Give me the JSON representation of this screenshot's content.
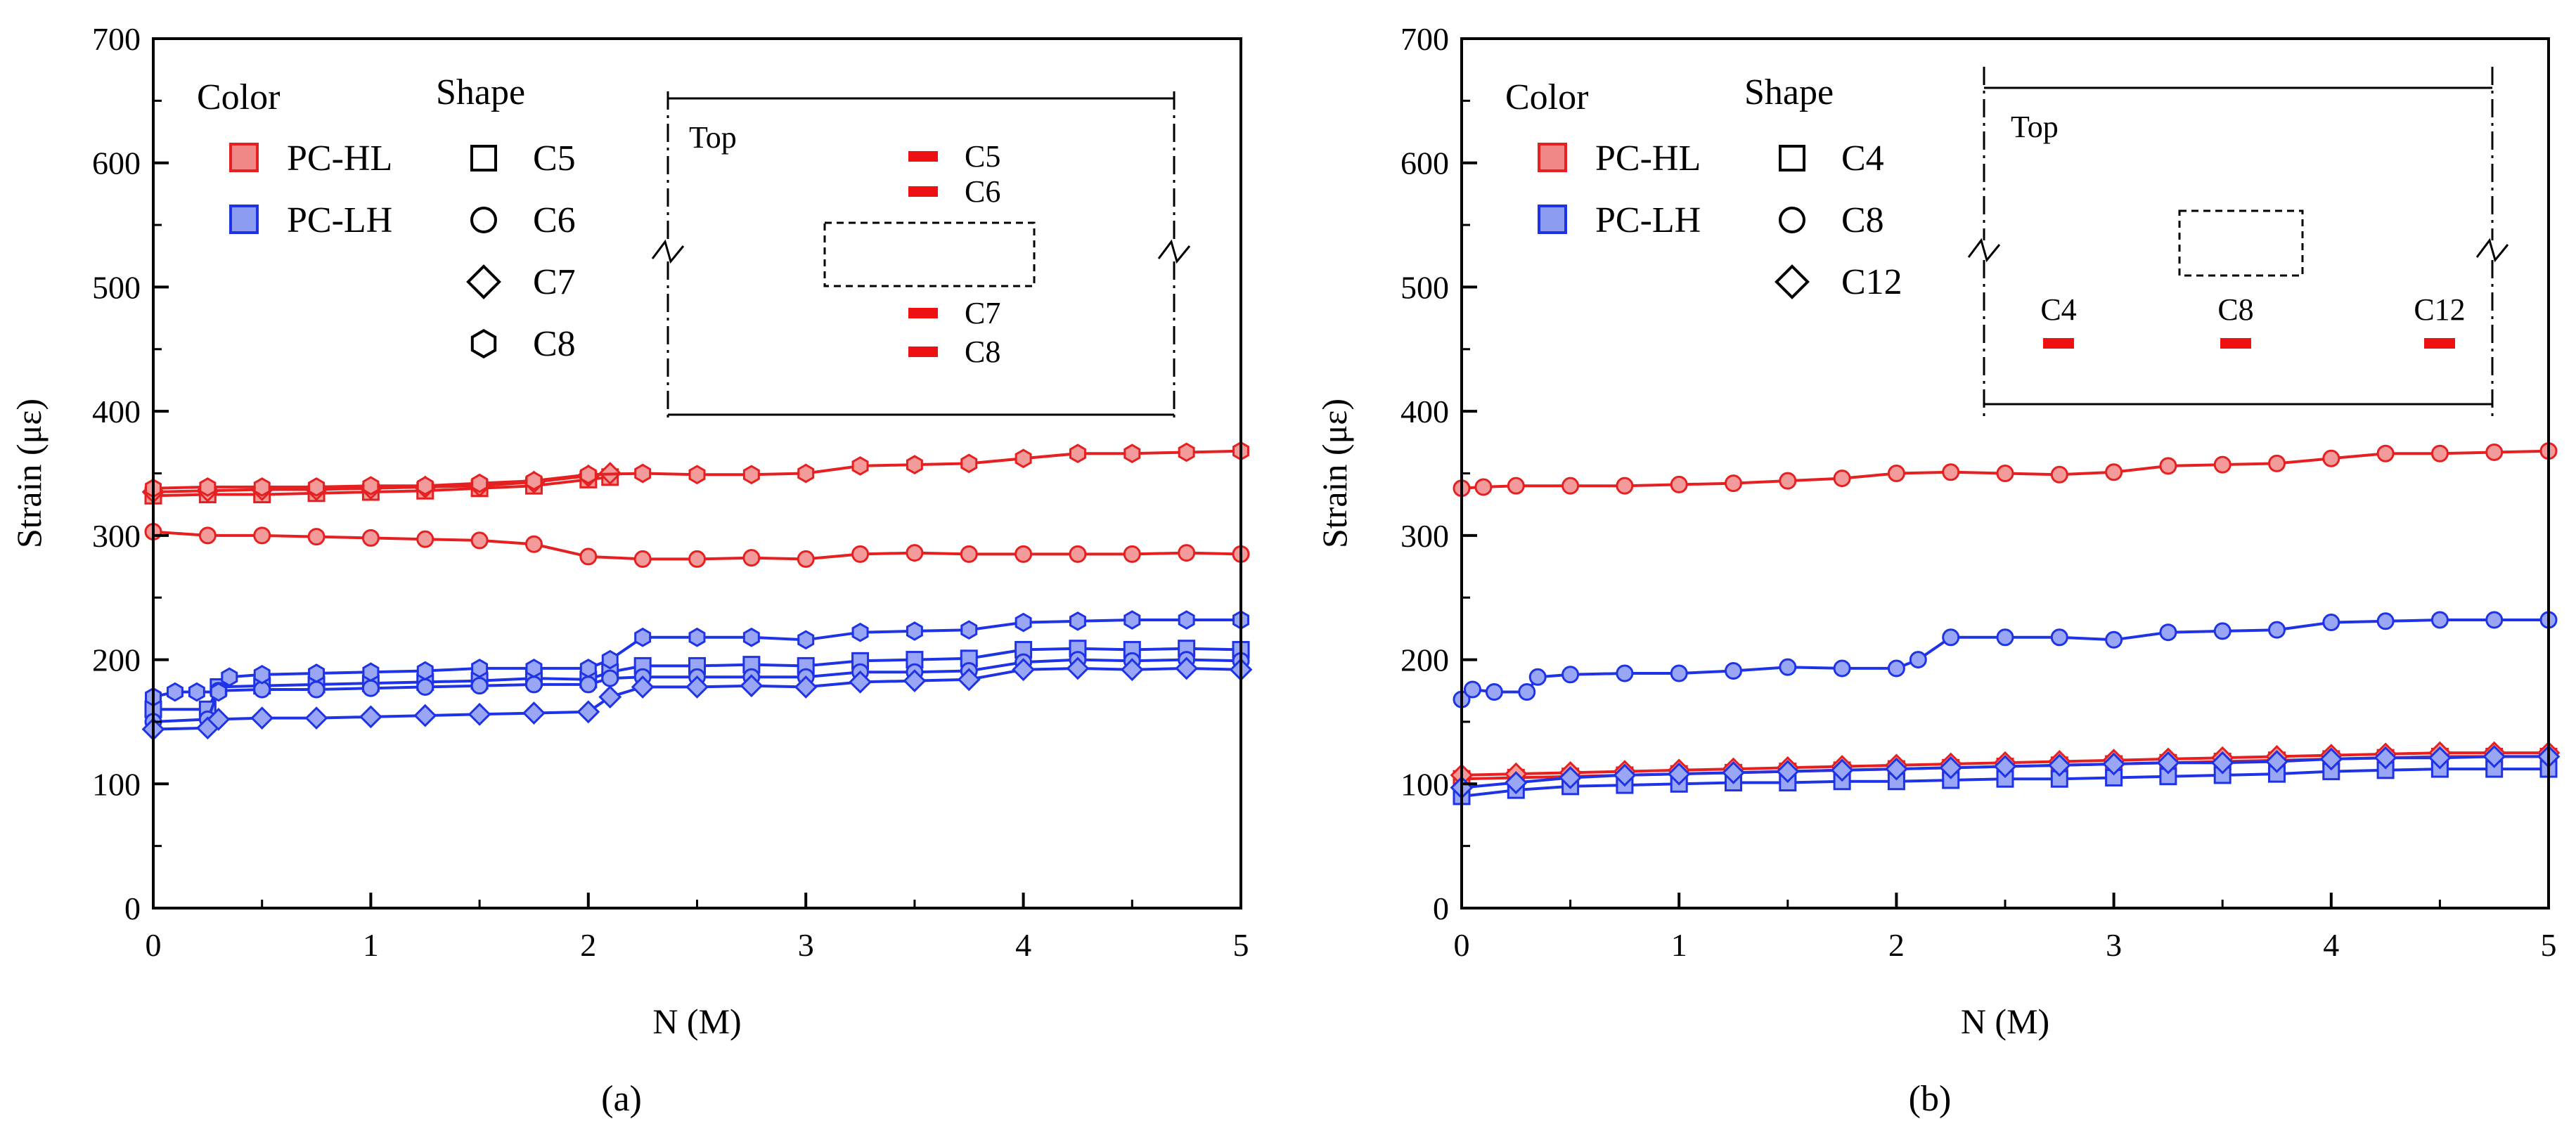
{
  "chart_data": [
    {
      "type": "line",
      "panel_label": "(a)",
      "xlabel": "N (M)",
      "ylabel": "Strain (με)",
      "xlim": [
        0,
        5
      ],
      "ylim": [
        0,
        700
      ],
      "xticks": [
        "0",
        "1",
        "2",
        "3",
        "4",
        "5"
      ],
      "yticks": [
        "0",
        "100",
        "200",
        "300",
        "400",
        "500",
        "600",
        "700"
      ],
      "legend": {
        "color_title": "Color",
        "shape_title": "Shape",
        "color_entries": [
          {
            "label": "PC-HL",
            "color": "#f08888"
          },
          {
            "label": "PC-LH",
            "color": "#8c9cf0"
          }
        ],
        "shape_entries": [
          {
            "label": "C5",
            "shape": "square"
          },
          {
            "label": "C6",
            "shape": "circle"
          },
          {
            "label": "C7",
            "shape": "diamond"
          },
          {
            "label": "C8",
            "shape": "hexagon"
          }
        ]
      },
      "inset": {
        "top_label": "Top",
        "gauges": [
          "C5",
          "C6",
          "C7",
          "C8"
        ]
      },
      "series": [
        {
          "group": "PC-HL",
          "gauge": "C5",
          "marker": "square",
          "color": "#e62020",
          "fill": "#f39a9a",
          "x": [
            0,
            0.25,
            0.5,
            0.75,
            1,
            1.25,
            1.5,
            1.75,
            2.0,
            2.1
          ],
          "y": [
            332,
            333,
            333,
            334,
            335,
            336,
            338,
            340,
            345,
            347
          ]
        },
        {
          "group": "PC-HL",
          "gauge": "C6",
          "marker": "circle",
          "color": "#e62020",
          "fill": "#f39a9a",
          "x": [
            0,
            0.25,
            0.5,
            0.75,
            1,
            1.25,
            1.5,
            1.75,
            2.0,
            2.25,
            2.5,
            2.75,
            3.0,
            3.25,
            3.5,
            3.75,
            4.0,
            4.25,
            4.5,
            4.75,
            5.0
          ],
          "y": [
            303,
            300,
            300,
            299,
            298,
            297,
            296,
            293,
            283,
            281,
            281,
            282,
            281,
            285,
            286,
            285,
            285,
            285,
            285,
            286,
            285
          ]
        },
        {
          "group": "PC-HL",
          "gauge": "C7",
          "marker": "diamond",
          "color": "#e62020",
          "fill": "#f39a9a",
          "x": [
            0,
            0.25,
            0.5,
            0.75,
            1,
            1.25,
            1.5,
            1.75,
            2.0,
            2.1
          ],
          "y": [
            335,
            336,
            337,
            337,
            338,
            339,
            340,
            343,
            348,
            350
          ]
        },
        {
          "group": "PC-HL",
          "gauge": "C8",
          "marker": "hexagon",
          "color": "#e62020",
          "fill": "#f39a9a",
          "x": [
            0,
            0.25,
            0.5,
            0.75,
            1,
            1.25,
            1.5,
            1.75,
            2.0,
            2.25,
            2.5,
            2.75,
            3.0,
            3.25,
            3.5,
            3.75,
            4.0,
            4.25,
            4.5,
            4.75,
            5.0
          ],
          "y": [
            338,
            339,
            339,
            339,
            340,
            340,
            342,
            344,
            349,
            350,
            349,
            349,
            350,
            356,
            357,
            358,
            362,
            366,
            366,
            367,
            368
          ]
        },
        {
          "group": "PC-LH",
          "gauge": "C5",
          "marker": "square",
          "color": "#1f33e6",
          "fill": "#98a6f5",
          "x": [
            0,
            0.25,
            0.3,
            0.5,
            0.75,
            1,
            1.25,
            1.5,
            1.75,
            2.0,
            2.1,
            2.25,
            2.5,
            2.75,
            3.0,
            3.25,
            3.5,
            3.75,
            4.0,
            4.25,
            4.5,
            4.75,
            5.0
          ],
          "y": [
            160,
            160,
            178,
            179,
            180,
            181,
            182,
            183,
            185,
            184,
            190,
            195,
            195,
            196,
            195,
            199,
            200,
            201,
            208,
            209,
            208,
            209,
            208
          ]
        },
        {
          "group": "PC-LH",
          "gauge": "C6",
          "marker": "circle",
          "color": "#1f33e6",
          "fill": "#98a6f5",
          "x": [
            0,
            0.25,
            0.3,
            0.5,
            0.75,
            1,
            1.25,
            1.5,
            1.75,
            2.0,
            2.1,
            2.25,
            2.5,
            2.75,
            3.0,
            3.25,
            3.5,
            3.75,
            4.0,
            4.25,
            4.5,
            4.75,
            5.0
          ],
          "y": [
            150,
            152,
            175,
            176,
            176,
            177,
            178,
            179,
            180,
            180,
            185,
            186,
            186,
            186,
            186,
            190,
            190,
            191,
            198,
            200,
            199,
            200,
            199
          ]
        },
        {
          "group": "PC-LH",
          "gauge": "C7",
          "marker": "diamond",
          "color": "#1f33e6",
          "fill": "#98a6f5",
          "x": [
            0,
            0.25,
            0.3,
            0.5,
            0.75,
            1,
            1.25,
            1.5,
            1.75,
            2.0,
            2.1,
            2.25,
            2.5,
            2.75,
            3.0,
            3.25,
            3.5,
            3.75,
            4.0,
            4.25,
            4.5,
            4.75,
            5.0
          ],
          "y": [
            144,
            145,
            152,
            153,
            153,
            154,
            155,
            156,
            157,
            158,
            170,
            178,
            178,
            179,
            178,
            182,
            183,
            184,
            192,
            193,
            192,
            193,
            192
          ]
        },
        {
          "group": "PC-LH",
          "gauge": "C8",
          "marker": "hexagon",
          "color": "#1f33e6",
          "fill": "#98a6f5",
          "x": [
            0,
            0.1,
            0.2,
            0.3,
            0.35,
            0.5,
            0.75,
            1,
            1.25,
            1.5,
            1.75,
            2.0,
            2.1,
            2.25,
            2.5,
            2.75,
            3.0,
            3.25,
            3.5,
            3.75,
            4.0,
            4.25,
            4.5,
            4.75,
            5.0
          ],
          "y": [
            170,
            174,
            174,
            174,
            186,
            188,
            189,
            190,
            191,
            193,
            193,
            193,
            200,
            218,
            218,
            218,
            216,
            222,
            223,
            224,
            230,
            231,
            232,
            232,
            232
          ]
        }
      ]
    },
    {
      "type": "line",
      "panel_label": "(b)",
      "xlabel": "N (M)",
      "ylabel": "Strain (με)",
      "xlim": [
        0,
        5
      ],
      "ylim": [
        0,
        700
      ],
      "xticks": [
        "0",
        "1",
        "2",
        "3",
        "4",
        "5"
      ],
      "yticks": [
        "0",
        "100",
        "200",
        "300",
        "400",
        "500",
        "600",
        "700"
      ],
      "legend": {
        "color_title": "Color",
        "shape_title": "Shape",
        "color_entries": [
          {
            "label": "PC-HL",
            "color": "#f08888"
          },
          {
            "label": "PC-LH",
            "color": "#8c9cf0"
          }
        ],
        "shape_entries": [
          {
            "label": "C4",
            "shape": "square"
          },
          {
            "label": "C8",
            "shape": "circle"
          },
          {
            "label": "C12",
            "shape": "diamond"
          }
        ]
      },
      "inset": {
        "top_label": "Top",
        "gauges": [
          "C4",
          "C8",
          "C12"
        ]
      },
      "series": [
        {
          "group": "PC-HL",
          "gauge": "C8",
          "marker": "circle",
          "color": "#e62020",
          "fill": "#f39a9a",
          "x": [
            0,
            0.1,
            0.25,
            0.5,
            0.75,
            1,
            1.25,
            1.5,
            1.75,
            2.0,
            2.25,
            2.5,
            2.75,
            3.0,
            3.25,
            3.5,
            3.75,
            4.0,
            4.25,
            4.5,
            4.75,
            5.0
          ],
          "y": [
            338,
            339,
            340,
            340,
            340,
            341,
            342,
            344,
            346,
            350,
            351,
            350,
            349,
            351,
            356,
            357,
            358,
            362,
            366,
            366,
            367,
            368
          ]
        },
        {
          "group": "PC-HL",
          "gauge": "C4",
          "marker": "square",
          "color": "#e62020",
          "fill": "#f39a9a",
          "x": [
            0,
            0.25,
            0.5,
            0.75,
            1,
            1.25,
            1.5,
            1.75,
            2.0,
            2.25,
            2.5,
            2.75,
            3.0,
            3.25,
            3.5,
            3.75,
            4.0,
            4.25,
            4.5,
            4.75,
            5.0
          ],
          "y": [
            104,
            105,
            106,
            107,
            108,
            109,
            110,
            111,
            112,
            113,
            114,
            115,
            116,
            117,
            118,
            119,
            120,
            121,
            122,
            122,
            122
          ]
        },
        {
          "group": "PC-HL",
          "gauge": "C12",
          "marker": "diamond",
          "color": "#e62020",
          "fill": "#f39a9a",
          "x": [
            0,
            0.25,
            0.5,
            0.75,
            1,
            1.25,
            1.5,
            1.75,
            2.0,
            2.25,
            2.5,
            2.75,
            3.0,
            3.25,
            3.5,
            3.75,
            4.0,
            4.25,
            4.5,
            4.75,
            5.0
          ],
          "y": [
            107,
            108,
            109,
            110,
            111,
            112,
            113,
            114,
            115,
            116,
            117,
            118,
            119,
            120,
            121,
            122,
            123,
            124,
            125,
            125,
            125
          ]
        },
        {
          "group": "PC-LH",
          "gauge": "C8",
          "marker": "circle",
          "color": "#1f33e6",
          "fill": "#98a6f5",
          "x": [
            0,
            0.05,
            0.15,
            0.3,
            0.35,
            0.5,
            0.75,
            1,
            1.25,
            1.5,
            1.75,
            2.0,
            2.1,
            2.25,
            2.5,
            2.75,
            3.0,
            3.25,
            3.5,
            3.75,
            4.0,
            4.25,
            4.5,
            4.75,
            5.0
          ],
          "y": [
            168,
            176,
            174,
            174,
            186,
            188,
            189,
            189,
            191,
            194,
            193,
            193,
            200,
            218,
            218,
            218,
            216,
            222,
            223,
            224,
            230,
            231,
            232,
            232,
            232
          ]
        },
        {
          "group": "PC-LH",
          "gauge": "C4",
          "marker": "square",
          "color": "#1f33e6",
          "fill": "#98a6f5",
          "x": [
            0,
            0.25,
            0.5,
            0.75,
            1,
            1.25,
            1.5,
            1.75,
            2.0,
            2.25,
            2.5,
            2.75,
            3.0,
            3.25,
            3.5,
            3.75,
            4.0,
            4.25,
            4.5,
            4.75,
            5.0
          ],
          "y": [
            90,
            95,
            98,
            99,
            100,
            101,
            101,
            102,
            102,
            103,
            104,
            104,
            105,
            106,
            107,
            108,
            110,
            111,
            112,
            112,
            112
          ]
        },
        {
          "group": "PC-LH",
          "gauge": "C12",
          "marker": "diamond",
          "color": "#1f33e6",
          "fill": "#98a6f5",
          "x": [
            0,
            0.25,
            0.5,
            0.75,
            1,
            1.25,
            1.5,
            1.75,
            2.0,
            2.25,
            2.5,
            2.75,
            3.0,
            3.25,
            3.5,
            3.75,
            4.0,
            4.25,
            4.5,
            4.75,
            5.0
          ],
          "y": [
            97,
            101,
            105,
            107,
            108,
            109,
            110,
            111,
            112,
            113,
            114,
            115,
            116,
            117,
            117,
            118,
            120,
            121,
            121,
            122,
            122
          ]
        }
      ]
    }
  ]
}
